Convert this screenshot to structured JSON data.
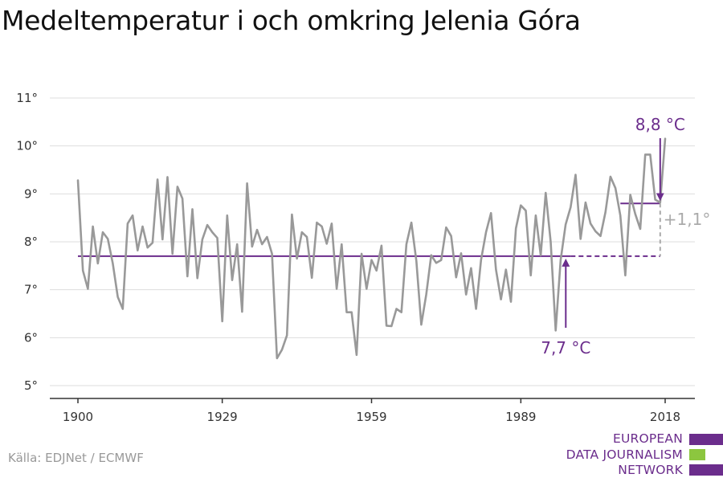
{
  "title": "Medeltemperatur i och omkring Jelenia Góra",
  "source": "Källa: EDJNet / ECMWF",
  "logo": {
    "lines": [
      "EUROPEAN",
      "DATA JOURNALISM",
      "NETWORK"
    ],
    "colors": [
      "#6b2d8c",
      "#8cc63f",
      "#6b2d8c"
    ]
  },
  "colors": {
    "series": "#999999",
    "accent": "#6b2d8c",
    "difference": "#aaaaaa",
    "grid": "#dddddd",
    "axis": "#333333"
  },
  "chart_data": {
    "type": "line",
    "xlim": [
      1900,
      2018
    ],
    "ylim": [
      5,
      11
    ],
    "x_ticks": [
      1900,
      1929,
      1959,
      1989,
      2018
    ],
    "y_ticks": [
      5,
      6,
      7,
      8,
      9,
      10,
      11
    ],
    "y_tick_labels": [
      "5°",
      "6°",
      "7°",
      "8°",
      "9°",
      "10°",
      "11°"
    ],
    "grid": true,
    "x": [
      1900,
      1901,
      1902,
      1903,
      1904,
      1905,
      1906,
      1907,
      1908,
      1909,
      1910,
      1911,
      1912,
      1913,
      1914,
      1915,
      1916,
      1917,
      1918,
      1919,
      1920,
      1921,
      1922,
      1923,
      1924,
      1925,
      1926,
      1927,
      1928,
      1929,
      1930,
      1931,
      1932,
      1933,
      1934,
      1935,
      1936,
      1937,
      1938,
      1939,
      1940,
      1941,
      1942,
      1943,
      1944,
      1945,
      1946,
      1947,
      1948,
      1949,
      1950,
      1951,
      1952,
      1953,
      1954,
      1955,
      1956,
      1957,
      1958,
      1959,
      1960,
      1961,
      1962,
      1963,
      1964,
      1965,
      1966,
      1967,
      1968,
      1969,
      1970,
      1971,
      1972,
      1973,
      1974,
      1975,
      1976,
      1977,
      1978,
      1979,
      1980,
      1981,
      1982,
      1983,
      1984,
      1985,
      1986,
      1987,
      1988,
      1989,
      1990,
      1991,
      1992,
      1993,
      1994,
      1995,
      1996,
      1997,
      1998,
      1999,
      2000,
      2001,
      2002,
      2003,
      2004,
      2005,
      2006,
      2007,
      2008,
      2009,
      2010,
      2011,
      2012,
      2013,
      2014,
      2015,
      2016,
      2017,
      2018
    ],
    "values": [
      9.28,
      7.4,
      7.02,
      8.32,
      7.55,
      8.2,
      8.06,
      7.55,
      6.85,
      6.6,
      8.38,
      8.55,
      7.82,
      8.32,
      7.88,
      7.98,
      9.3,
      8.05,
      9.35,
      7.75,
      9.15,
      8.9,
      7.28,
      8.68,
      7.24,
      8.05,
      8.35,
      8.2,
      8.08,
      6.34,
      8.55,
      7.2,
      7.95,
      6.54,
      9.22,
      7.9,
      8.25,
      7.95,
      8.1,
      7.75,
      5.57,
      5.75,
      6.05,
      8.57,
      7.65,
      8.2,
      8.1,
      7.25,
      8.4,
      8.32,
      7.96,
      8.38,
      7.02,
      7.95,
      6.53,
      6.53,
      5.64,
      7.75,
      7.02,
      7.62,
      7.4,
      7.92,
      6.25,
      6.24,
      6.6,
      6.53,
      7.95,
      8.4,
      7.6,
      6.27,
      6.9,
      7.72,
      7.56,
      7.62,
      8.3,
      8.12,
      7.26,
      7.76,
      6.9,
      7.45,
      6.6,
      7.62,
      8.2,
      8.6,
      7.42,
      6.8,
      7.42,
      6.75,
      8.28,
      8.76,
      8.65,
      7.3,
      8.55,
      7.72,
      9.02,
      8.0,
      6.15,
      7.62,
      8.36,
      8.72,
      9.4,
      8.06,
      8.82,
      8.38,
      8.22,
      8.12,
      8.62,
      9.36,
      9.12,
      8.55,
      7.3,
      8.98,
      8.58,
      8.27,
      9.82,
      9.82,
      8.88,
      8.82,
      10.15
    ],
    "reference": {
      "value": 7.7,
      "x_from": 1900,
      "x_solid_end": 1999,
      "x_to": 2017,
      "label": "7,7 °C"
    },
    "recent": {
      "value": 8.8,
      "x_from": 2009,
      "x_to": 2017,
      "label": "8,8 °C"
    },
    "difference": {
      "x": 2017,
      "label": "+1,1°"
    }
  }
}
